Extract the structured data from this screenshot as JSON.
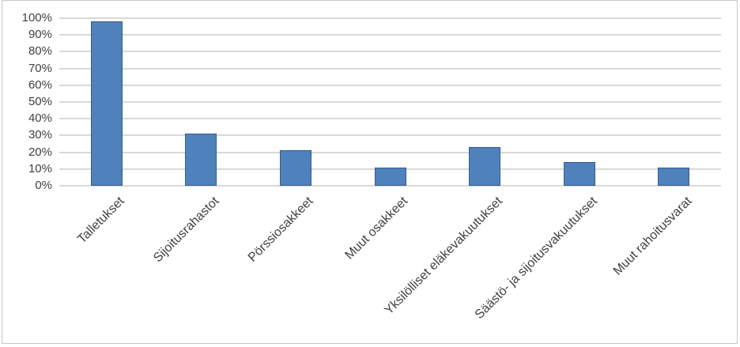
{
  "chart_data": {
    "type": "bar",
    "title": "",
    "xlabel": "",
    "ylabel": "",
    "categories": [
      "Talletukset",
      "Sijoitusrahastot",
      "Pörssiosakkeet",
      "Muut osakkeet",
      "Yksilölliset eläkevakuutukset",
      "Säästö- ja sijoitusvakuutukset",
      "Muut rahoitusvarat"
    ],
    "values": [
      98,
      31,
      21,
      11,
      23,
      14,
      11
    ],
    "value_unit": "%",
    "ylim": [
      0,
      100
    ],
    "y_tick_step": 10,
    "y_tick_labels": [
      "0%",
      "10%",
      "20%",
      "30%",
      "40%",
      "50%",
      "60%",
      "70%",
      "80%",
      "90%",
      "100%"
    ],
    "grid": true,
    "legend": false,
    "bar_fill_color": "#4F81BD",
    "bar_border_color": "#385D8A",
    "gridline_color": "#D9D9D9",
    "axis_text_color": "#404040",
    "frame_border_color": "#C9C9C9",
    "background_color": "#FFFFFF"
  }
}
